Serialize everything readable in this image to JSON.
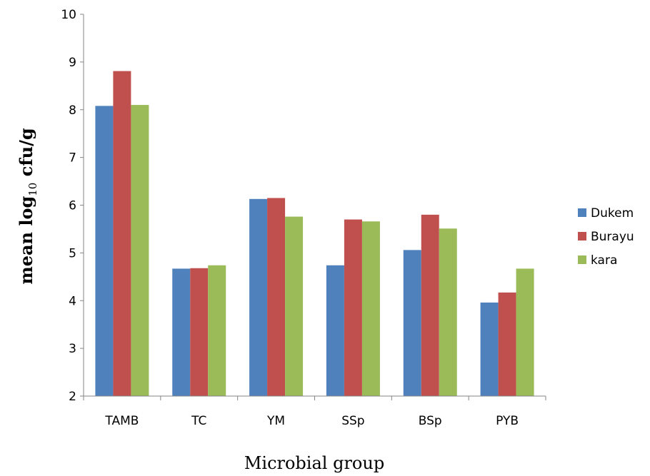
{
  "chart_data": {
    "type": "bar",
    "title": "",
    "xlabel": "Microbial group",
    "ylabel_parts": {
      "before": "mean log",
      "subscript": "10",
      "after": " cfu/g"
    },
    "ylim": [
      2,
      10
    ],
    "ytick_step": 1,
    "grid": false,
    "legend_position": "right",
    "categories": [
      "TAMB",
      "TC",
      "YM",
      "SSp",
      "BSp",
      "PYB"
    ],
    "series": [
      {
        "name": "Dukem",
        "color": "#4F81BD",
        "values": [
          8.08,
          4.67,
          6.13,
          4.74,
          5.06,
          3.96
        ]
      },
      {
        "name": "Burayu",
        "color": "#C0504D",
        "values": [
          8.81,
          4.68,
          6.15,
          5.7,
          5.8,
          4.17
        ]
      },
      {
        "name": "kara",
        "color": "#9BBB59",
        "values": [
          8.1,
          4.74,
          5.76,
          5.66,
          5.51,
          4.67
        ]
      }
    ]
  }
}
